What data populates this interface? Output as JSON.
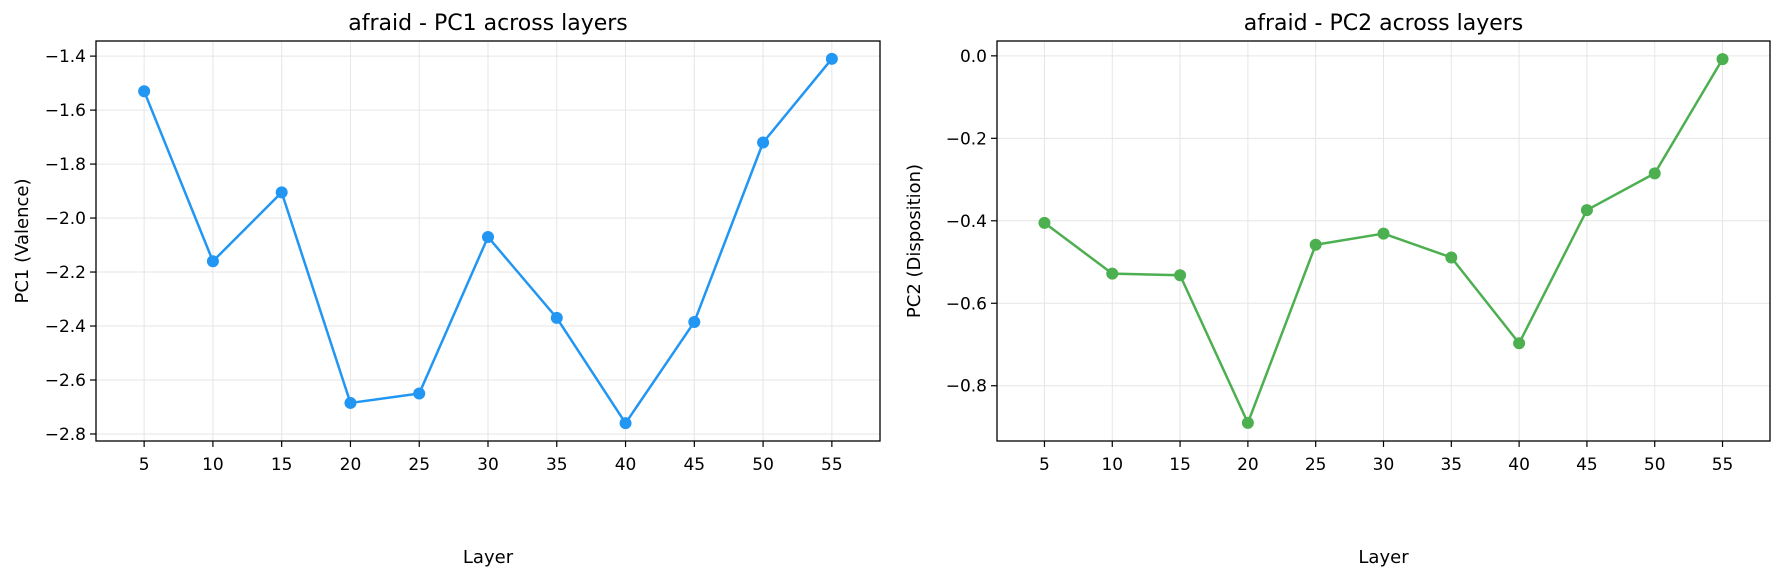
{
  "chart_data": [
    {
      "type": "line",
      "title": "afraid - PC1 across layers",
      "xlabel": "Layer",
      "ylabel": "PC1 (Valence)",
      "x": [
        5,
        10,
        15,
        20,
        25,
        30,
        35,
        40,
        45,
        50,
        55
      ],
      "series": [
        {
          "values": [
            -1.53,
            -2.16,
            -1.905,
            -2.685,
            -2.65,
            -2.07,
            -2.37,
            -2.76,
            -2.385,
            -1.72,
            -1.41
          ],
          "color": "#2196f3",
          "marker": "circle"
        }
      ],
      "xticks": [
        "5",
        "10",
        "15",
        "20",
        "25",
        "30",
        "35",
        "40",
        "45",
        "50",
        "55"
      ],
      "yticks": [
        "−2.8",
        "−2.6",
        "−2.4",
        "−2.2",
        "−2.0",
        "−1.8",
        "−1.6",
        "−1.4"
      ],
      "ytick_values": [
        -2.8,
        -2.6,
        -2.4,
        -2.2,
        -2.0,
        -1.8,
        -1.6,
        -1.4
      ],
      "xlim": [
        1.5,
        58.5
      ],
      "ylim": [
        -2.826,
        -1.344
      ],
      "grid": true
    },
    {
      "type": "line",
      "title": "afraid - PC2 across layers",
      "xlabel": "Layer",
      "ylabel": "PC2 (Disposition)",
      "x": [
        5,
        10,
        15,
        20,
        25,
        30,
        35,
        40,
        45,
        50,
        55
      ],
      "series": [
        {
          "values": [
            -0.405,
            -0.528,
            -0.532,
            -0.89,
            -0.458,
            -0.431,
            -0.489,
            -0.697,
            -0.374,
            -0.285,
            -0.008
          ],
          "color": "#4caf50",
          "marker": "circle"
        }
      ],
      "xticks": [
        "5",
        "10",
        "15",
        "20",
        "25",
        "30",
        "35",
        "40",
        "45",
        "50",
        "55"
      ],
      "yticks": [
        "−0.8",
        "−0.6",
        "−0.4",
        "−0.2",
        "0.0"
      ],
      "ytick_values": [
        -0.8,
        -0.6,
        -0.4,
        -0.2,
        0.0
      ],
      "xlim": [
        1.5,
        58.5
      ],
      "ylim": [
        -0.934,
        0.036
      ],
      "grid": true
    }
  ]
}
